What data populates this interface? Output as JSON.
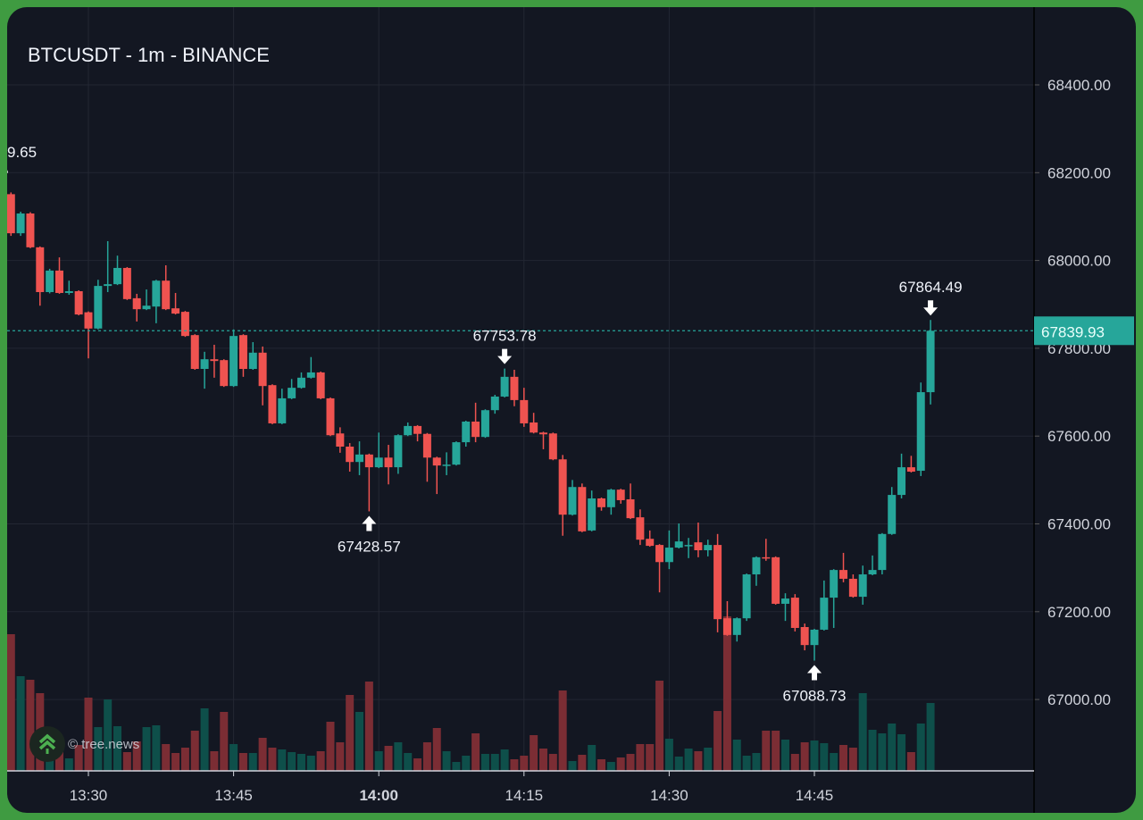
{
  "title": "BTCUSDT - 1m - BINANCE",
  "watermark": "© tree.news",
  "colors": {
    "up": "#26a69a",
    "down": "#ef5350",
    "volume_up": "#0e4f4a",
    "volume_down": "#7b2d34",
    "background": "#131722",
    "grid": "#232733",
    "frame": "#3f9b41",
    "price_tag": "#26a69a"
  },
  "chart_data": {
    "type": "candlestick",
    "symbol": "BTCUSDT",
    "interval": "1m",
    "exchange": "BINANCE",
    "ylim": [
      66840,
      68577
    ],
    "y_ticks": [
      "68400.00",
      "68200.00",
      "68000.00",
      "67800.00",
      "67600.00",
      "67400.00",
      "67200.00",
      "67000.00"
    ],
    "x_ticks": [
      {
        "label": "13:30",
        "bold": false
      },
      {
        "label": "13:45",
        "bold": false
      },
      {
        "label": "14:00",
        "bold": true
      },
      {
        "label": "14:15",
        "bold": false
      },
      {
        "label": "14:30",
        "bold": false
      },
      {
        "label": "14:45",
        "bold": false
      }
    ],
    "grid": true,
    "last_price": "67839.93",
    "annotations": [
      {
        "time": "14:57",
        "type": "high",
        "label": "67864.49"
      },
      {
        "time": "14:13",
        "type": "high",
        "label": "67753.78"
      },
      {
        "time": "13:59",
        "type": "low",
        "label": "67428.57"
      },
      {
        "time": "14:45",
        "type": "low",
        "label": "67088.73"
      }
    ],
    "offscreen_label": "9.65",
    "candle_fields": [
      "time",
      "open",
      "high",
      "low",
      "close",
      "volume_relative"
    ],
    "candles": [
      [
        "13:22",
        68151,
        68155,
        68056,
        68062,
        153
      ],
      [
        "13:23",
        68062,
        68111,
        68056,
        68107,
        106
      ],
      [
        "13:24",
        68107,
        68110,
        68028,
        68030,
        102
      ],
      [
        "13:25",
        68030,
        68032,
        67897,
        67928,
        87
      ],
      [
        "13:26",
        67928,
        67981,
        67925,
        67977,
        14
      ],
      [
        "13:27",
        67977,
        68007,
        67924,
        67926,
        23
      ],
      [
        "13:28",
        67926,
        67954,
        67922,
        67930,
        14
      ],
      [
        "13:29",
        67930,
        67932,
        67875,
        67877,
        29
      ],
      [
        "13:30",
        67882,
        67884,
        67777,
        67845,
        82
      ],
      [
        "13:31",
        67845,
        67956,
        67843,
        67942,
        49
      ],
      [
        "13:32",
        67942,
        68044,
        67928,
        67946,
        80
      ],
      [
        "13:33",
        67946,
        68011,
        67944,
        67983,
        50
      ],
      [
        "13:34",
        67983,
        67985,
        67910,
        67912,
        21
      ],
      [
        "13:35",
        67914,
        67924,
        67861,
        67889,
        33
      ],
      [
        "13:36",
        67889,
        67934,
        67887,
        67897,
        49
      ],
      [
        "13:37",
        67895,
        67956,
        67857,
        67954,
        51
      ],
      [
        "13:38",
        67954,
        67989,
        67887,
        67889,
        30
      ],
      [
        "13:39",
        67891,
        67926,
        67877,
        67879,
        20
      ],
      [
        "13:40",
        67883,
        67885,
        67826,
        67828,
        26
      ],
      [
        "13:41",
        67830,
        67832,
        67751,
        67753,
        45
      ],
      [
        "13:42",
        67753,
        67792,
        67708,
        67775,
        70
      ],
      [
        "13:43",
        67775,
        67808,
        67733,
        67771,
        22
      ],
      [
        "13:44",
        67773,
        67775,
        67712,
        67714,
        66
      ],
      [
        "13:45",
        67714,
        67843,
        67712,
        67828,
        30
      ],
      [
        "13:46",
        67830,
        67832,
        67735,
        67753,
        20
      ],
      [
        "13:47",
        67753,
        67814,
        67751,
        67790,
        20
      ],
      [
        "13:48",
        67790,
        67804,
        67670,
        67714,
        37
      ],
      [
        "13:49",
        67716,
        67718,
        67627,
        67629,
        26
      ],
      [
        "13:50",
        67629,
        67708,
        67627,
        67686,
        24
      ],
      [
        "13:51",
        67686,
        67730,
        67684,
        67710,
        21
      ],
      [
        "13:52",
        67710,
        67745,
        67708,
        67733,
        19
      ],
      [
        "13:53",
        67733,
        67780,
        67731,
        67745,
        17
      ],
      [
        "13:54",
        67745,
        67747,
        67684,
        67686,
        22
      ],
      [
        "13:55",
        67686,
        67688,
        67600,
        67602,
        55
      ],
      [
        "13:56",
        67606,
        67620,
        67562,
        67576,
        32
      ],
      [
        "13:57",
        67576,
        67584,
        67519,
        67541,
        85
      ],
      [
        "13:58",
        67541,
        67588,
        67511,
        67558,
        66
      ],
      [
        "13:59",
        67558,
        67560,
        67428.57,
        67529,
        100
      ],
      [
        "14:00",
        67529,
        67608,
        67527,
        67551,
        22
      ],
      [
        "14:01",
        67551,
        67580,
        67490,
        67529,
        28
      ],
      [
        "14:02",
        67529,
        67604,
        67514,
        67602,
        32
      ],
      [
        "14:03",
        67602,
        67631,
        67600,
        67623,
        20
      ],
      [
        "14:04",
        67623,
        67625,
        67588,
        67605,
        14
      ],
      [
        "14:05",
        67605,
        67607,
        67496,
        67551,
        32
      ],
      [
        "14:06",
        67551,
        67553,
        67468,
        67533,
        48
      ],
      [
        "14:07",
        67533,
        67563,
        67511,
        67535,
        22
      ],
      [
        "14:08",
        67535,
        67588,
        67533,
        67586,
        10
      ],
      [
        "14:09",
        67586,
        67635,
        67576,
        67633,
        17
      ],
      [
        "14:10",
        67633,
        67676,
        67586,
        67598,
        42
      ],
      [
        "14:11",
        67598,
        67661,
        67596,
        67659,
        19
      ],
      [
        "14:12",
        67659,
        67694,
        67651,
        67690,
        19
      ],
      [
        "14:13",
        67690,
        67753.78,
        67688,
        67735,
        24
      ],
      [
        "14:14",
        67735,
        67751,
        67668,
        67682,
        13
      ],
      [
        "14:15",
        67682,
        67710,
        67621,
        67629,
        17
      ],
      [
        "14:16",
        67631,
        67653,
        67606,
        67608,
        40
      ],
      [
        "14:17",
        67608,
        67610,
        67570,
        67604,
        25
      ],
      [
        "14:18",
        67606,
        67608,
        67545,
        67547,
        19
      ],
      [
        "14:19",
        67547,
        67557,
        67373,
        67421,
        90
      ],
      [
        "14:20",
        67421,
        67500,
        67419,
        67484,
        11
      ],
      [
        "14:21",
        67484,
        67492,
        67381,
        67383,
        18
      ],
      [
        "14:22",
        67385,
        67476,
        67383,
        67458,
        29
      ],
      [
        "14:23",
        67458,
        67460,
        67430,
        67438,
        13
      ],
      [
        "14:24",
        67438,
        67480,
        67421,
        67478,
        10
      ],
      [
        "14:25",
        67478,
        67480,
        67446,
        67454,
        15
      ],
      [
        "14:26",
        67456,
        67492,
        67411,
        67413,
        19
      ],
      [
        "14:27",
        67415,
        67433,
        67352,
        67364,
        30
      ],
      [
        "14:28",
        67366,
        67385,
        67348,
        67350,
        30
      ],
      [
        "14:29",
        67352,
        67354,
        67244,
        67313,
        101
      ],
      [
        "14:30",
        67313,
        67385,
        67297,
        67346,
        36
      ],
      [
        "14:31",
        67346,
        67401,
        67344,
        67360,
        16
      ],
      [
        "14:32",
        67350,
        67368,
        67322,
        67352,
        25
      ],
      [
        "14:33",
        67358,
        67403,
        67324,
        67340,
        22
      ],
      [
        "14:34",
        67340,
        67364,
        67326,
        67352,
        26
      ],
      [
        "14:35",
        67352,
        67377,
        67153,
        67183,
        67
      ],
      [
        "14:36",
        67185,
        67224,
        67145,
        67147,
        173
      ],
      [
        "14:37",
        67147,
        67187,
        67132,
        67185,
        35
      ],
      [
        "14:38",
        67185,
        67287,
        67179,
        67285,
        17
      ],
      [
        "14:39",
        67285,
        67326,
        67259,
        67324,
        20
      ],
      [
        "14:40",
        67324,
        67366,
        67316,
        67322,
        45
      ],
      [
        "14:41",
        67324,
        67326,
        67216,
        67218,
        45
      ],
      [
        "14:42",
        67218,
        67242,
        67179,
        67230,
        35
      ],
      [
        "14:43",
        67232,
        67240,
        67155,
        67163,
        19
      ],
      [
        "14:44",
        67165,
        67173,
        67112,
        67124,
        32
      ],
      [
        "14:45",
        67124,
        67161,
        67088.73,
        67159,
        34
      ],
      [
        "14:46",
        67159,
        67271,
        67157,
        67232,
        31
      ],
      [
        "14:47",
        67232,
        67297,
        67163,
        67295,
        20
      ],
      [
        "14:48",
        67295,
        67334,
        67267,
        67275,
        29
      ],
      [
        "14:49",
        67275,
        67285,
        67232,
        67234,
        26
      ],
      [
        "14:50",
        67234,
        67305,
        67216,
        67285,
        87
      ],
      [
        "14:51",
        67285,
        67328,
        67283,
        67295,
        46
      ],
      [
        "14:52",
        67295,
        67379,
        67285,
        67377,
        42
      ],
      [
        "14:53",
        67377,
        67484,
        67375,
        67466,
        53
      ],
      [
        "14:54",
        67466,
        67560,
        67458,
        67529,
        41
      ],
      [
        "14:55",
        67529,
        67555,
        67517,
        67519,
        21
      ],
      [
        "14:56",
        67521,
        67722,
        67509,
        67700,
        53
      ],
      [
        "14:57",
        67700,
        67864.49,
        67672,
        67839.93,
        76
      ]
    ]
  }
}
